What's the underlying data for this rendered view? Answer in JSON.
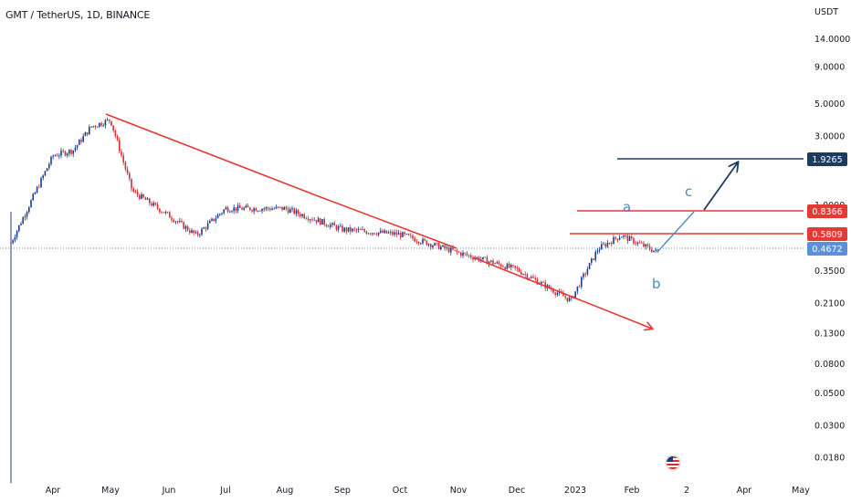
{
  "header": {
    "symbol_title": "GMT / TetherUS, 1D, BINANCE"
  },
  "y_axis": {
    "unit": "USDT",
    "ticks": [
      "14.0000",
      "9.0000",
      "5.0000",
      "3.0000",
      "1.0000",
      "0.3500",
      "0.2100",
      "0.1300",
      "0.0800",
      "0.0500",
      "0.0300",
      "0.0180"
    ]
  },
  "x_axis": {
    "ticks": [
      "Apr",
      "May",
      "Jun",
      "Jul",
      "Aug",
      "Sep",
      "Oct",
      "Nov",
      "Dec",
      "2023",
      "Feb",
      "2",
      "Apr",
      "May"
    ]
  },
  "price_tags": [
    {
      "value": "1.9265",
      "color": "#1e3a5f"
    },
    {
      "value": "0.8366",
      "color": "#e53935"
    },
    {
      "value": "0.5809",
      "color": "#e53935"
    },
    {
      "value": "0.4672",
      "color": "#5b8fd6"
    }
  ],
  "wave_labels": {
    "a": "a",
    "b": "b",
    "c": "c"
  },
  "colors": {
    "up": "#26a69a",
    "down": "#ef5350",
    "candle_up": "#1c3d8f",
    "candle_down": "#d32f2f",
    "trendline": "#e53935",
    "projection": "#1e3a5f",
    "wave_path": "#4a8ac4"
  },
  "icons": {
    "event": "us-flag-icon"
  },
  "chart_data": {
    "type": "candlestick",
    "title": "GMT / TetherUS, 1D, BINANCE",
    "exchange": "BINANCE",
    "interval": "1D",
    "scale": "log",
    "y_unit": "USDT",
    "x_ticks": [
      "Apr",
      "May",
      "Jun",
      "Jul",
      "Aug",
      "Sep",
      "Oct",
      "Nov",
      "Dec",
      "2023",
      "Feb",
      "2",
      "Apr",
      "May"
    ],
    "approx_close_path": [
      {
        "period": "Mar 2022",
        "close": 0.55
      },
      {
        "period": "early Apr 2022",
        "close": 2.2
      },
      {
        "period": "mid Apr 2022",
        "close": 2.4
      },
      {
        "period": "late Apr 2022",
        "close": 3.5
      },
      {
        "period": "early May 2022",
        "close": 3.9
      },
      {
        "period": "mid May 2022",
        "close": 1.25
      },
      {
        "period": "Jun 2022",
        "close": 0.85
      },
      {
        "period": "mid Jun 2022",
        "close": 0.62
      },
      {
        "period": "Jul 2022",
        "close": 0.95
      },
      {
        "period": "Aug 2022",
        "close": 0.95
      },
      {
        "period": "Sep 2022",
        "close": 0.68
      },
      {
        "period": "Oct 2022",
        "close": 0.63
      },
      {
        "period": "Nov 2022",
        "close": 0.47
      },
      {
        "period": "Dec 2022",
        "close": 0.36
      },
      {
        "period": "late Dec 2022",
        "close": 0.22
      },
      {
        "period": "Jan 2023",
        "close": 0.5
      },
      {
        "period": "late Jan 2023",
        "close": 0.62
      },
      {
        "period": "Feb 2023",
        "close": 0.4672
      }
    ],
    "horizontal_levels": [
      1.9265,
      0.8366,
      0.5809
    ],
    "last_price": 0.4672,
    "wave_labels": [
      "a",
      "b",
      "c"
    ]
  }
}
